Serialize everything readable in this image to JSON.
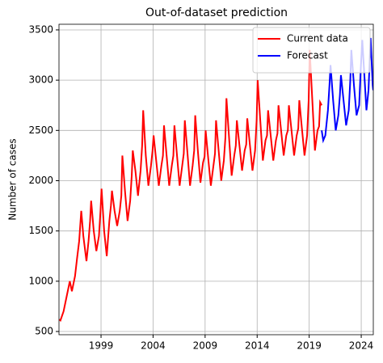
{
  "chart_data": {
    "type": "line",
    "title": "Out-of-dataset prediction",
    "ylabel": "Number of cases",
    "xlim": [
      1994.96,
      2025.16
    ],
    "ylim": [
      468,
      3556
    ],
    "xticks": [
      1999,
      2004,
      2009,
      2014,
      2019,
      2024
    ],
    "yticks": [
      500,
      1000,
      1500,
      2000,
      2500,
      3000,
      3500
    ],
    "grid": true,
    "legend": "upper right",
    "series": [
      {
        "name": "Current data",
        "color": "#ff0000",
        "x": [
          1995.0,
          1995.1,
          1995.4,
          1995.7,
          1995.9,
          1996.0,
          1996.2,
          1996.5,
          1996.7,
          1996.9,
          1997.1,
          1997.3,
          1997.6,
          1997.8,
          1997.95,
          1998.05,
          1998.3,
          1998.55,
          1998.8,
          1998.95,
          1999.05,
          1999.3,
          1999.55,
          1999.8,
          1999.95,
          2000.05,
          2000.3,
          2000.55,
          2000.8,
          2000.95,
          2001.05,
          2001.3,
          2001.55,
          2001.8,
          2001.95,
          2002.05,
          2002.3,
          2002.55,
          2002.8,
          2002.95,
          2003.05,
          2003.3,
          2003.55,
          2003.8,
          2003.95,
          2004.05,
          2004.3,
          2004.55,
          2004.8,
          2004.95,
          2005.05,
          2005.3,
          2005.55,
          2005.8,
          2005.95,
          2006.05,
          2006.3,
          2006.55,
          2006.8,
          2006.95,
          2007.05,
          2007.3,
          2007.55,
          2007.8,
          2007.95,
          2008.05,
          2008.3,
          2008.55,
          2008.8,
          2008.95,
          2009.05,
          2009.3,
          2009.55,
          2009.8,
          2009.95,
          2010.05,
          2010.3,
          2010.55,
          2010.8,
          2010.95,
          2011.05,
          2011.3,
          2011.55,
          2011.8,
          2011.95,
          2012.05,
          2012.3,
          2012.55,
          2012.8,
          2012.95,
          2013.05,
          2013.3,
          2013.55,
          2013.8,
          2013.95,
          2014.05,
          2014.3,
          2014.55,
          2014.8,
          2014.95,
          2015.05,
          2015.3,
          2015.55,
          2015.8,
          2015.95,
          2016.05,
          2016.3,
          2016.55,
          2016.8,
          2016.95,
          2017.05,
          2017.3,
          2017.55,
          2017.8,
          2017.95,
          2018.05,
          2018.3,
          2018.55,
          2018.8,
          2018.95,
          2019.05,
          2019.3,
          2019.55,
          2019.8,
          2019.95,
          2020.05,
          2020.2
        ],
        "values": [
          620,
          610,
          700,
          850,
          950,
          1000,
          900,
          1050,
          1230,
          1400,
          1700,
          1450,
          1200,
          1400,
          1600,
          1800,
          1500,
          1300,
          1450,
          1700,
          1920,
          1500,
          1250,
          1600,
          1750,
          1900,
          1700,
          1550,
          1700,
          1850,
          2250,
          1900,
          1600,
          1800,
          2050,
          2300,
          2100,
          1850,
          2100,
          2350,
          2700,
          2250,
          1950,
          2150,
          2300,
          2450,
          2200,
          1950,
          2150,
          2250,
          2550,
          2250,
          1950,
          2150,
          2250,
          2550,
          2250,
          1950,
          2150,
          2270,
          2600,
          2280,
          1950,
          2150,
          2300,
          2650,
          2300,
          1980,
          2180,
          2240,
          2500,
          2220,
          1950,
          2150,
          2270,
          2600,
          2300,
          2000,
          2200,
          2430,
          2820,
          2430,
          2050,
          2250,
          2350,
          2600,
          2350,
          2100,
          2300,
          2360,
          2620,
          2360,
          2100,
          2300,
          2600,
          3000,
          2600,
          2200,
          2400,
          2450,
          2700,
          2450,
          2200,
          2400,
          2470,
          2750,
          2500,
          2250,
          2450,
          2500,
          2750,
          2500,
          2250,
          2450,
          2520,
          2800,
          2520,
          2250,
          2450,
          2800,
          3300,
          2800,
          2300,
          2500,
          2540,
          2780,
          2750
        ]
      },
      {
        "name": "Forecast",
        "color": "#0000ff",
        "x": [
          2020.2,
          2020.35,
          2020.55,
          2020.8,
          2020.95,
          2021.05,
          2021.3,
          2021.55,
          2021.8,
          2021.95,
          2022.05,
          2022.3,
          2022.55,
          2022.8,
          2022.95,
          2023.05,
          2023.3,
          2023.55,
          2023.8,
          2023.95,
          2024.1,
          2024.3,
          2024.5,
          2024.7,
          2024.9,
          2025.1,
          2025.15
        ],
        "values": [
          2500,
          2400,
          2450,
          2700,
          2950,
          3150,
          2800,
          2500,
          2650,
          2850,
          3050,
          2800,
          2550,
          2700,
          3000,
          3300,
          2950,
          2650,
          2750,
          3100,
          3400,
          3050,
          2700,
          2900,
          3420,
          2950,
          2900
        ]
      }
    ]
  }
}
